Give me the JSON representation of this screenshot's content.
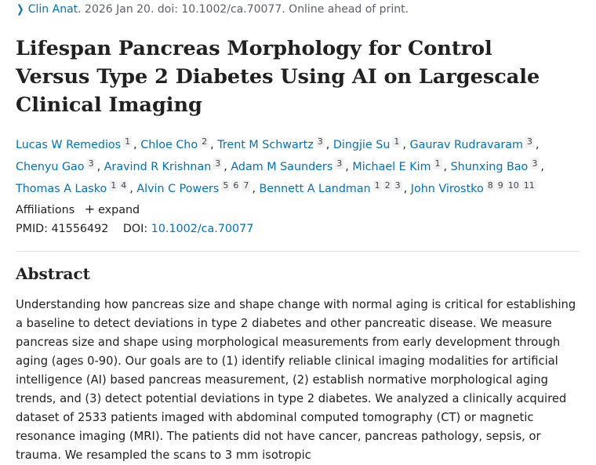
{
  "citation": {
    "journal": "Clin Anat.",
    "details": " 2026 Jan 20. doi: 10.1002/ca.70077. Online ahead of print."
  },
  "title": "Lifespan Pancreas Morphology for Control Versus Type 2 Diabetes Using AI on Largescale Clinical Imaging",
  "authors": [
    {
      "name": "Lucas W Remedios",
      "affils": [
        "1"
      ]
    },
    {
      "name": "Chloe Cho",
      "affils": [
        "2"
      ]
    },
    {
      "name": "Trent M Schwartz",
      "affils": [
        "3"
      ]
    },
    {
      "name": "Dingjie Su",
      "affils": [
        "1"
      ]
    },
    {
      "name": "Gaurav Rudravaram",
      "affils": [
        "3"
      ]
    },
    {
      "name": "Chenyu Gao",
      "affils": [
        "3"
      ]
    },
    {
      "name": "Aravind R Krishnan",
      "affils": [
        "3"
      ]
    },
    {
      "name": "Adam M Saunders",
      "affils": [
        "3"
      ]
    },
    {
      "name": "Michael E Kim",
      "affils": [
        "1"
      ]
    },
    {
      "name": "Shunxing Bao",
      "affils": [
        "3"
      ]
    },
    {
      "name": "Thomas A Lasko",
      "affils": [
        "1",
        "4"
      ]
    },
    {
      "name": "Alvin C Powers",
      "affils": [
        "5",
        "6",
        "7"
      ]
    },
    {
      "name": "Bennett A Landman",
      "affils": [
        "1",
        "2",
        "3"
      ]
    },
    {
      "name": "John Virostko",
      "affils": [
        "8",
        "9",
        "10",
        "11"
      ]
    }
  ],
  "affiliations": {
    "label": "Affiliations",
    "expand_icon": "plus-icon",
    "expand_label": "expand"
  },
  "ids": {
    "pmid_label": "PMID:",
    "pmid": "41556492",
    "doi_label": "DOI:",
    "doi": "10.1002/ca.70077"
  },
  "abstract": {
    "heading": "Abstract",
    "text": "Understanding how pancreas size and shape change with normal aging is critical for establishing a baseline to detect deviations in type 2 diabetes and other pancreatic disease. We measure pancreas size and shape using morphological measurements from early development through aging (ages 0-90). Our goals are to (1) identify reliable clinical imaging modalities for artificial intelligence (AI) based pancreas measurement, (2) establish normative morphological aging trends, and (3) detect potential deviations in type 2 diabetes. We analyzed a clinically acquired dataset of 2533 patients imaged with abdominal computed tomography (CT) or magnetic resonance imaging (MRI). The patients did not have cancer, pancreas pathology, sepsis, or trauma. We resampled the scans to 3 mm isotropic"
  },
  "colors": {
    "link": "#0071bc",
    "text": "#212121",
    "muted": "#5b616b"
  }
}
